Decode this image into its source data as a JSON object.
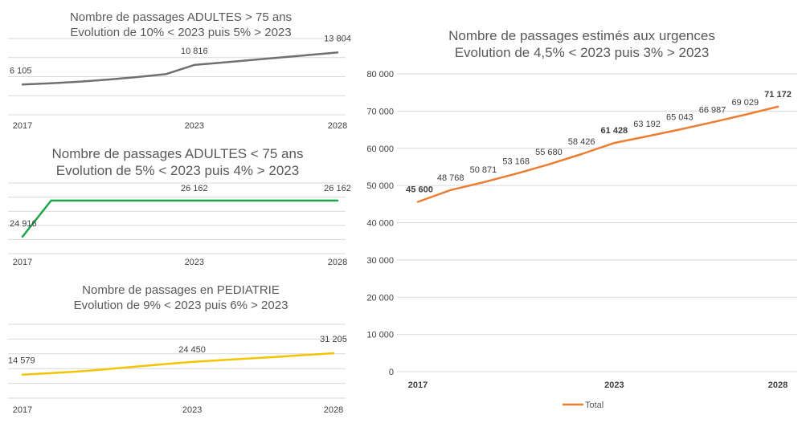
{
  "chart_data": [
    {
      "type": "line",
      "title": "Nombre de passages ADULTES > 75 ans",
      "subtitle": "Evolution de 10% < 2023 puis 5% > 2023",
      "x": [
        2017,
        2018,
        2019,
        2020,
        2021,
        2022,
        2023,
        2024,
        2025,
        2026,
        2027,
        2028
      ],
      "x_tick_labels": [
        "2017",
        "2023",
        "2028"
      ],
      "series": [
        {
          "values": [
            6105,
            6400,
            6800,
            7300,
            7900,
            8600,
            10816,
            11400,
            12000,
            12600,
            13200,
            13804
          ],
          "color": "#707070"
        }
      ],
      "data_labels": [
        {
          "x": 2017,
          "text": "6 105"
        },
        {
          "x": 2023,
          "text": "10 816"
        },
        {
          "x": 2028,
          "text": "13 804"
        }
      ],
      "ylim": [
        0,
        16000
      ],
      "grid": true
    },
    {
      "type": "line",
      "title": "Nombre de passages ADULTES < 75 ans",
      "subtitle": "Evolution de 5% < 2023 puis 4% > 2023",
      "x": [
        2017,
        2018,
        2019,
        2020,
        2021,
        2022,
        2023,
        2024,
        2025,
        2026,
        2027,
        2028
      ],
      "x_tick_labels": [
        "2017",
        "2023",
        "2028"
      ],
      "series": [
        {
          "values": [
            24916,
            26162,
            26162,
            26162,
            26162,
            26162,
            26162,
            26162,
            26162,
            26162,
            26162,
            26162
          ],
          "color": "#1aa64a"
        }
      ],
      "data_labels": [
        {
          "x": 2017,
          "text": "24 916"
        },
        {
          "x": 2023,
          "text": "26 162"
        },
        {
          "x": 2028,
          "text": "26 162"
        }
      ],
      "ylim": [
        24500,
        26600
      ],
      "grid": true
    },
    {
      "type": "line",
      "title": "Nombre de passages en PEDIATRIE",
      "subtitle": "Evolution de 9% < 2023 puis 6% > 2023",
      "x": [
        2017,
        2018,
        2019,
        2020,
        2021,
        2022,
        2023,
        2024,
        2025,
        2026,
        2027,
        2028
      ],
      "x_tick_labels": [
        "2017",
        "2023",
        "2028"
      ],
      "series": [
        {
          "values": [
            14579,
            15700,
            17000,
            18800,
            20800,
            22700,
            24450,
            25800,
            27100,
            28400,
            29800,
            31205
          ],
          "color": "#f5c400"
        }
      ],
      "data_labels": [
        {
          "x": 2017,
          "text": "14 579"
        },
        {
          "x": 2023,
          "text": "24 450"
        },
        {
          "x": 2028,
          "text": "31 205"
        }
      ],
      "ylim": [
        0,
        50000
      ],
      "grid": true
    },
    {
      "type": "line",
      "title": "Nombre de passages estimés aux urgences",
      "subtitle": "Evolution de 4,5% < 2023 puis 3% > 2023",
      "x": [
        2017,
        2018,
        2019,
        2020,
        2021,
        2022,
        2023,
        2024,
        2025,
        2026,
        2027,
        2028
      ],
      "x_tick_labels": [
        "2017",
        "2023",
        "2028"
      ],
      "y_ticks": [
        0,
        10000,
        20000,
        30000,
        40000,
        50000,
        60000,
        70000,
        80000
      ],
      "y_tick_labels": [
        "0",
        "10 000",
        "20 000",
        "30 000",
        "40 000",
        "50 000",
        "60 000",
        "70 000",
        "80 000"
      ],
      "series": [
        {
          "name": "Total",
          "values": [
            45600,
            48768,
            50871,
            53168,
            55680,
            58426,
            61428,
            63192,
            65043,
            66987,
            69029,
            71172
          ],
          "color": "#ed7d31"
        }
      ],
      "data_labels": [
        {
          "x": 2017,
          "text": "45 600",
          "bold": true
        },
        {
          "x": 2018,
          "text": "48 768"
        },
        {
          "x": 2019,
          "text": "50 871"
        },
        {
          "x": 2020,
          "text": "53 168"
        },
        {
          "x": 2021,
          "text": "55 680"
        },
        {
          "x": 2022,
          "text": "58 426"
        },
        {
          "x": 2023,
          "text": "61 428",
          "bold": true
        },
        {
          "x": 2024,
          "text": "63 192"
        },
        {
          "x": 2025,
          "text": "65 043"
        },
        {
          "x": 2026,
          "text": "66 987"
        },
        {
          "x": 2027,
          "text": "69 029"
        },
        {
          "x": 2028,
          "text": "71 172",
          "bold": true
        }
      ],
      "ylim": [
        0,
        80000
      ],
      "grid": true,
      "legend": {
        "position": "bottom",
        "label": "Total"
      }
    }
  ]
}
